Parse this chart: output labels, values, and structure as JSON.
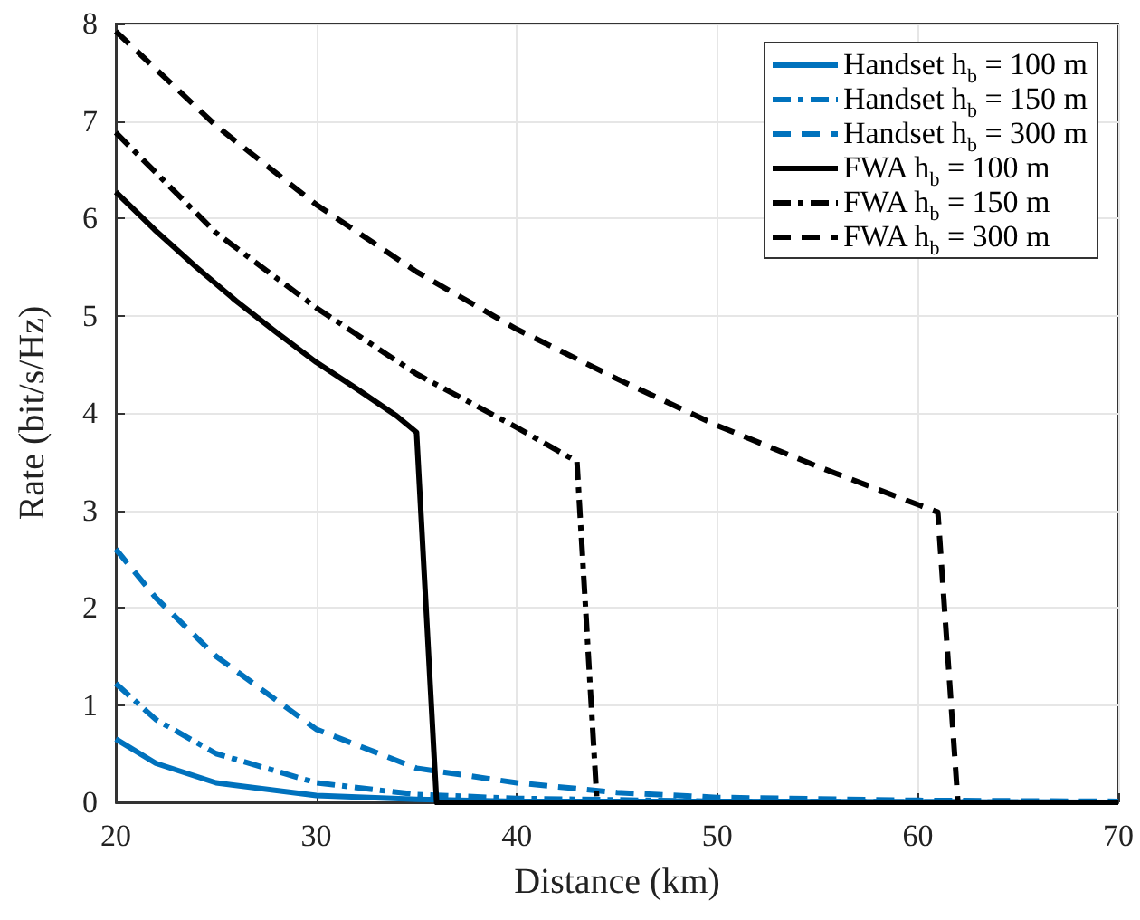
{
  "chart_data": {
    "type": "line",
    "xlabel": "Distance (km)",
    "ylabel": "Rate (bit/s/Hz)",
    "xlim": [
      20,
      70
    ],
    "xticks": [
      20,
      30,
      40,
      50,
      60,
      70
    ],
    "ylim": [
      0,
      8
    ],
    "yticks": [
      0,
      1,
      2,
      3,
      4,
      5,
      6,
      7,
      8
    ],
    "grid": true,
    "legend": "top right",
    "marker": "none",
    "series": [
      {
        "name": "Handset h$_{b}$ = 100 m",
        "color": "#0072bd",
        "line_style": "solid",
        "x": [
          20,
          22,
          25,
          30,
          35,
          40,
          50,
          70
        ],
        "values": [
          0.65,
          0.4,
          0.2,
          0.07,
          0.03,
          0.01,
          0.01,
          0
        ]
      },
      {
        "name": "Handset h$_{b}$ = 150 m",
        "color": "#0072bd",
        "line_style": "dashdot",
        "x": [
          20,
          22,
          25,
          30,
          35,
          40,
          50,
          70
        ],
        "values": [
          1.22,
          0.85,
          0.5,
          0.2,
          0.08,
          0.04,
          0.01,
          0
        ]
      },
      {
        "name": "Handset h$_{b}$ = 300 m",
        "color": "#0072bd",
        "line_style": "dashed",
        "x": [
          20,
          22,
          25,
          30,
          35,
          40,
          45,
          50,
          60,
          70
        ],
        "values": [
          2.6,
          2.1,
          1.5,
          0.75,
          0.35,
          0.2,
          0.1,
          0.05,
          0.02,
          0.01
        ]
      },
      {
        "name": "FWA h$_{b}$ = 100 m",
        "color": "#000000",
        "line_style": "solid",
        "x": [
          20,
          22,
          24,
          26,
          28,
          30,
          32,
          34,
          35,
          36,
          70
        ],
        "values": [
          6.27,
          5.87,
          5.5,
          5.15,
          4.83,
          4.52,
          4.25,
          3.97,
          3.8,
          0,
          0
        ]
      },
      {
        "name": "FWA h$_{b}$ = 150 m",
        "color": "#000000",
        "line_style": "dashdot",
        "x": [
          20,
          25,
          30,
          35,
          40,
          43,
          44,
          70
        ],
        "values": [
          6.88,
          5.85,
          5.08,
          4.4,
          3.85,
          3.5,
          0,
          0
        ]
      },
      {
        "name": "FWA h$_{b}$ = 300 m",
        "color": "#000000",
        "line_style": "dashed",
        "x": [
          20,
          25,
          30,
          35,
          40,
          45,
          50,
          55,
          61,
          62,
          70
        ],
        "values": [
          7.92,
          6.95,
          6.14,
          5.45,
          4.86,
          4.35,
          3.87,
          3.45,
          2.98,
          0,
          0
        ]
      }
    ]
  }
}
